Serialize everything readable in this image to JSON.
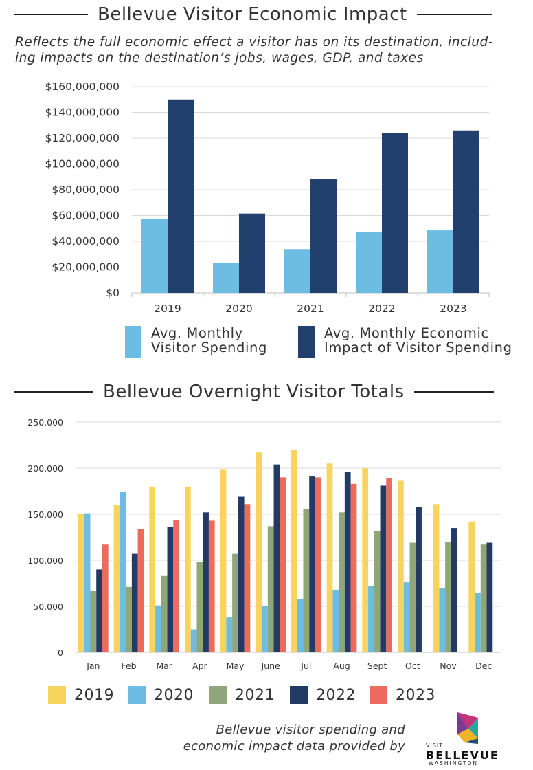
{
  "colors": {
    "light_blue": "#6dbde2",
    "navy": "#22406e",
    "yellow": "#f8d45e",
    "sky": "#6dbde2",
    "sage": "#8ea67a",
    "dark_navy": "#233a65",
    "coral": "#ec6b5d",
    "grid": "#d9d9d9",
    "text": "#333333"
  },
  "section1": {
    "title": "Bellevue Visitor Economic Impact",
    "subtitle_line1": "Reflects the full economic effect a visitor has on its destination, includ-",
    "subtitle_line2": "ing impacts on the destination’s jobs, wages, GDP, and taxes",
    "legend": [
      {
        "label": "Avg. Monthly\nVisitor Spending",
        "color": "#6dbde2"
      },
      {
        "label": "Avg. Monthly Economic\nImpact of Visitor Spending",
        "color": "#22406e"
      }
    ]
  },
  "section2": {
    "title": "Bellevue Overnight Visitor Totals",
    "legend": [
      {
        "label": "2019",
        "color": "#f8d45e"
      },
      {
        "label": "2020",
        "color": "#6dbde2"
      },
      {
        "label": "2021",
        "color": "#8ea67a"
      },
      {
        "label": "2022",
        "color": "#233a65"
      },
      {
        "label": "2023",
        "color": "#ec6b5d"
      }
    ]
  },
  "footer": {
    "credit_line1": "Bellevue visitor spending and",
    "credit_line2": "economic impact data provided by",
    "logo_visit": "VISIT",
    "logo_brand": "BELLEVUE",
    "logo_sub": "WASHINGTON"
  },
  "chart_data": [
    {
      "type": "bar",
      "title": "Bellevue Visitor Economic Impact",
      "categories": [
        "2019",
        "2020",
        "2021",
        "2022",
        "2023"
      ],
      "series": [
        {
          "name": "Avg. Monthly Visitor Spending",
          "color": "#6dbde2",
          "values": [
            57500000,
            23500000,
            34000000,
            47500000,
            48500000
          ]
        },
        {
          "name": "Avg. Monthly Economic Impact of Visitor Spending",
          "color": "#22406e",
          "values": [
            150000000,
            61500000,
            88500000,
            124000000,
            126000000
          ]
        }
      ],
      "ylim": [
        0,
        160000000
      ],
      "yticks": [
        0,
        20000000,
        40000000,
        60000000,
        80000000,
        100000000,
        120000000,
        140000000,
        160000000
      ],
      "ytick_labels": [
        "$0",
        "$20,000,000",
        "$40,000,000",
        "$60,000,000",
        "$80,000,000",
        "$100,000,000",
        "$120,000,000",
        "$140,000,000",
        "$160,000,000"
      ],
      "grid": true,
      "legend_position": "bottom"
    },
    {
      "type": "bar",
      "title": "Bellevue Overnight Visitor Totals",
      "categories": [
        "Jan",
        "Feb",
        "Mar",
        "Apr",
        "May",
        "June",
        "Jul",
        "Aug",
        "Sept",
        "Oct",
        "Nov",
        "Dec"
      ],
      "series": [
        {
          "name": "2019",
          "color": "#f8d45e",
          "values": [
            150000,
            160000,
            180000,
            180000,
            199000,
            217000,
            220000,
            205000,
            200000,
            187000,
            161000,
            142000
          ]
        },
        {
          "name": "2020",
          "color": "#6dbde2",
          "values": [
            151000,
            174000,
            51000,
            25000,
            38000,
            50000,
            58000,
            68000,
            72000,
            76000,
            70000,
            65000
          ]
        },
        {
          "name": "2021",
          "color": "#8ea67a",
          "values": [
            67000,
            71000,
            83000,
            98000,
            107000,
            137000,
            156000,
            152000,
            132000,
            119000,
            120000,
            117000
          ]
        },
        {
          "name": "2022",
          "color": "#233a65",
          "values": [
            90000,
            107000,
            136000,
            152000,
            169000,
            204000,
            191000,
            196000,
            181000,
            158000,
            135000,
            119000
          ]
        },
        {
          "name": "2023",
          "color": "#ec6b5d",
          "values": [
            117000,
            134000,
            144000,
            143000,
            161000,
            190000,
            190000,
            183000,
            189000,
            null,
            null,
            null
          ]
        }
      ],
      "ylim": [
        0,
        250000
      ],
      "yticks": [
        0,
        50000,
        100000,
        150000,
        200000,
        250000
      ],
      "ytick_labels": [
        "0",
        "50,000",
        "100,000",
        "150,000",
        "200,000",
        "250,000"
      ],
      "grid": true,
      "legend_position": "bottom"
    }
  ]
}
